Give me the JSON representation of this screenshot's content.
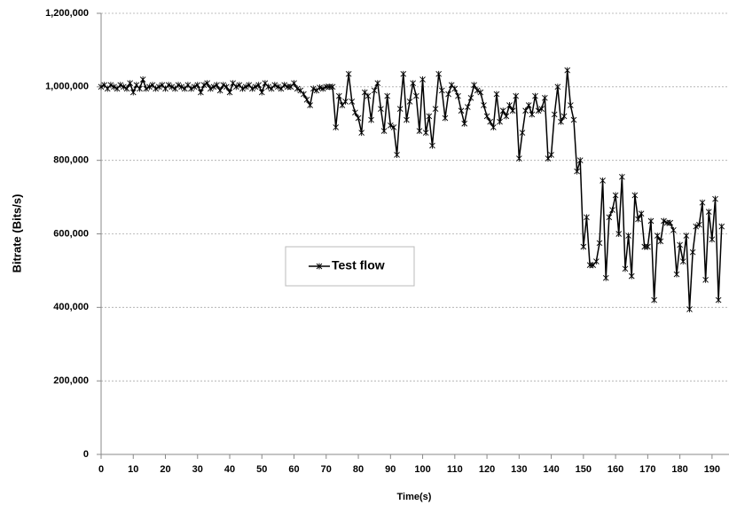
{
  "chart_data": {
    "type": "line",
    "x_label": "Time(s)",
    "y_label": "Bitrate (Bits/s)",
    "x": [
      0,
      1,
      2,
      3,
      4,
      5,
      6,
      7,
      8,
      9,
      10,
      11,
      12,
      13,
      14,
      15,
      16,
      17,
      18,
      19,
      20,
      21,
      22,
      23,
      24,
      25,
      26,
      27,
      28,
      29,
      30,
      31,
      32,
      33,
      34,
      35,
      36,
      37,
      38,
      39,
      40,
      41,
      42,
      43,
      44,
      45,
      46,
      47,
      48,
      49,
      50,
      51,
      52,
      53,
      54,
      55,
      56,
      57,
      58,
      59,
      60,
      61,
      62,
      63,
      64,
      65,
      66,
      67,
      68,
      69,
      70,
      71,
      72,
      73,
      74,
      75,
      76,
      77,
      78,
      79,
      80,
      81,
      82,
      83,
      84,
      85,
      86,
      87,
      88,
      89,
      90,
      91,
      92,
      93,
      94,
      95,
      96,
      97,
      98,
      99,
      100,
      101,
      102,
      103,
      104,
      105,
      106,
      107,
      108,
      109,
      110,
      111,
      112,
      113,
      114,
      115,
      116,
      117,
      118,
      119,
      120,
      121,
      122,
      123,
      124,
      125,
      126,
      127,
      128,
      129,
      130,
      131,
      132,
      133,
      134,
      135,
      136,
      137,
      138,
      139,
      140,
      141,
      142,
      143,
      144,
      145,
      146,
      147,
      148,
      149,
      150,
      151,
      152,
      153,
      154,
      155,
      156,
      157,
      158,
      159,
      160,
      161,
      162,
      163,
      164,
      165,
      166,
      167,
      168,
      169,
      170,
      171,
      172,
      173,
      174,
      175,
      176,
      177,
      178,
      179,
      180,
      181,
      182,
      183,
      184,
      185,
      186,
      187,
      188,
      189,
      190,
      191,
      192,
      193
    ],
    "series": [
      {
        "name": "Test flow",
        "color": "#000000",
        "values": [
          1000000,
          1005000,
          995000,
          1005000,
          1000000,
          995000,
          1005000,
          1000000,
          995000,
          1010000,
          985000,
          1005000,
          995000,
          1020000,
          995000,
          1000000,
          1005000,
          995000,
          1000000,
          1005000,
          995000,
          1005000,
          1000000,
          995000,
          1005000,
          1000000,
          995000,
          1005000,
          995000,
          1000000,
          1005000,
          985000,
          1005000,
          1010000,
          995000,
          1000000,
          1005000,
          990000,
          1005000,
          1000000,
          985000,
          1010000,
          1000000,
          1005000,
          995000,
          1000000,
          1005000,
          995000,
          1000000,
          1005000,
          985000,
          1010000,
          1000000,
          995000,
          1005000,
          1000000,
          995000,
          1005000,
          1000000,
          1000000,
          1010000,
          995000,
          990000,
          980000,
          965000,
          950000,
          995000,
          990000,
          998000,
          995000,
          1000000,
          1000000,
          1000000,
          890000,
          975000,
          950000,
          960000,
          1035000,
          960000,
          930000,
          915000,
          875000,
          985000,
          975000,
          910000,
          990000,
          1010000,
          940000,
          880000,
          975000,
          895000,
          890000,
          815000,
          940000,
          1035000,
          910000,
          960000,
          1010000,
          975000,
          880000,
          1020000,
          875000,
          920000,
          840000,
          940000,
          1035000,
          990000,
          915000,
          980000,
          1005000,
          995000,
          975000,
          935000,
          900000,
          945000,
          970000,
          1005000,
          990000,
          985000,
          950000,
          920000,
          905000,
          890000,
          980000,
          905000,
          935000,
          920000,
          950000,
          935000,
          975000,
          805000,
          875000,
          935000,
          950000,
          925000,
          975000,
          935000,
          940000,
          970000,
          805000,
          815000,
          925000,
          1000000,
          905000,
          920000,
          1045000,
          950000,
          910000,
          770000,
          800000,
          565000,
          645000,
          515000,
          515000,
          525000,
          575000,
          745000,
          480000,
          645000,
          665000,
          705000,
          600000,
          755000,
          505000,
          595000,
          485000,
          705000,
          640000,
          655000,
          565000,
          565000,
          635000,
          420000,
          595000,
          580000,
          635000,
          630000,
          630000,
          610000,
          490000,
          570000,
          525000,
          595000,
          395000,
          550000,
          620000,
          625000,
          685000,
          475000,
          660000,
          585000,
          695000,
          420000,
          620000
        ]
      }
    ],
    "xlim": [
      0,
      195
    ],
    "ylim": [
      0,
      1200000
    ],
    "xticks": [
      0,
      10,
      20,
      30,
      40,
      50,
      60,
      70,
      80,
      90,
      100,
      110,
      120,
      130,
      140,
      150,
      160,
      170,
      180,
      190
    ],
    "yticks": [
      {
        "value": 0,
        "label": "0"
      },
      {
        "value": 200000,
        "label": "200,000"
      },
      {
        "value": 400000,
        "label": "400,000"
      },
      {
        "value": 600000,
        "label": "600,000"
      },
      {
        "value": 800000,
        "label": "800,000"
      },
      {
        "value": 1000000,
        "label": "1,000,000"
      },
      {
        "value": 1200000,
        "label": "1,200,000"
      }
    ],
    "grid": true,
    "legend": "center-left"
  }
}
